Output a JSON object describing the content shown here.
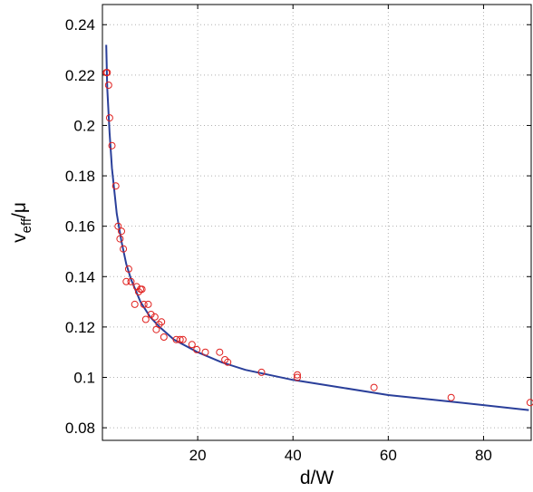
{
  "chart_data": {
    "type": "scatter",
    "title": "",
    "xlabel": "d/W",
    "ylabel_main": "v",
    "ylabel_sub": "eff",
    "ylabel_tail": "/μ",
    "xlim": [
      0,
      90
    ],
    "ylim": [
      0.075,
      0.248
    ],
    "xticks": [
      20,
      40,
      60,
      80
    ],
    "xtick_labels": [
      "20",
      "40",
      "60",
      "80"
    ],
    "yticks": [
      0.08,
      0.1,
      0.12,
      0.14,
      0.16,
      0.18,
      0.2,
      0.22,
      0.24
    ],
    "ytick_labels": [
      "0.08",
      "0.1",
      "0.12",
      "0.14",
      "0.16",
      "0.18",
      "0.2",
      "0.22",
      "0.24"
    ],
    "grid": true,
    "colors": {
      "points": "#e0201e",
      "fit_line": "#2a3f9a"
    },
    "series": [
      {
        "kind": "points",
        "x": [
          0.8,
          1.0,
          1.3,
          1.5,
          2.0,
          2.8,
          3.3,
          3.7,
          4.0,
          4.4,
          5.0,
          5.5,
          6.0,
          6.8,
          7.2,
          7.6,
          8.0,
          8.3,
          8.7,
          9.1,
          9.6,
          10.2,
          11.0,
          11.3,
          11.9,
          12.4,
          12.9,
          15.5,
          16.3,
          16.9,
          18.8,
          19.8,
          21.6,
          24.6,
          25.7,
          26.3,
          33.4,
          40.9,
          40.9,
          57.0,
          73.2,
          89.8
        ],
        "y": [
          0.221,
          0.221,
          0.216,
          0.203,
          0.192,
          0.176,
          0.16,
          0.155,
          0.158,
          0.151,
          0.138,
          0.143,
          0.138,
          0.129,
          0.136,
          0.134,
          0.135,
          0.135,
          0.129,
          0.123,
          0.129,
          0.125,
          0.124,
          0.119,
          0.121,
          0.122,
          0.116,
          0.115,
          0.115,
          0.115,
          0.113,
          0.111,
          0.11,
          0.11,
          0.107,
          0.106,
          0.102,
          0.101,
          0.1,
          0.096,
          0.092,
          0.09
        ]
      },
      {
        "kind": "fit",
        "x": [
          0.8,
          1.0,
          1.5,
          2.0,
          3.0,
          4.0,
          5.0,
          6.0,
          8.0,
          10.0,
          12.0,
          15.0,
          20.0,
          25.0,
          30.0,
          40.0,
          50.0,
          60.0,
          70.0,
          80.0,
          89.5
        ],
        "y": [
          0.232,
          0.215,
          0.197,
          0.183,
          0.165,
          0.154,
          0.145,
          0.139,
          0.13,
          0.124,
          0.12,
          0.115,
          0.11,
          0.106,
          0.103,
          0.099,
          0.096,
          0.093,
          0.091,
          0.089,
          0.087
        ]
      }
    ]
  }
}
